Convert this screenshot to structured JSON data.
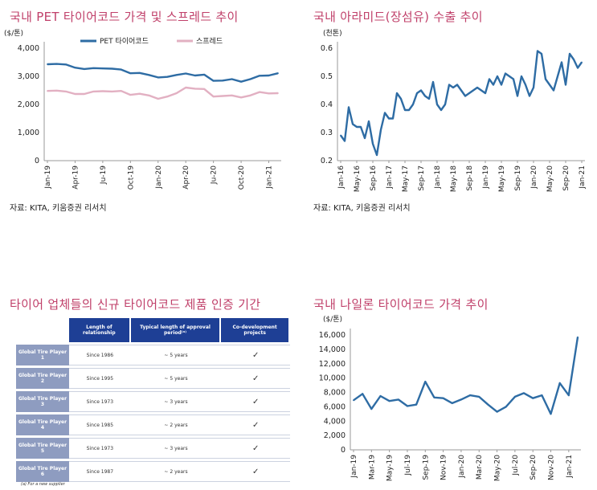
{
  "panels": {
    "pet": {
      "title": "국내 PET 타이어코드 가격 및 스프레드 추이",
      "source": "자료: KITA, 키움증권 리서치"
    },
    "aramid": {
      "title": "국내 아라미드(장섬유) 수출 추이",
      "source": "자료: KITA, 키움증권 리서치"
    },
    "certification": {
      "title": "타이어 업체들의 신규 타이어코드 제품 인증 기간",
      "headers": [
        "",
        "Length of relationship",
        "Typical length of approval period⁽ᵃ⁾",
        "Co-development projects"
      ],
      "rows": [
        {
          "player": "Global Tire Player 1",
          "since": "Since 1986",
          "approval": "~ 5 years",
          "codev": "✓"
        },
        {
          "player": "Global Tire Player 2",
          "since": "Since 1995",
          "approval": "~ 5 years",
          "codev": "✓"
        },
        {
          "player": "Global Tire Player 3",
          "since": "Since 1973",
          "approval": "~ 3 years",
          "codev": "✓"
        },
        {
          "player": "Global Tire Player 4",
          "since": "Since 1985",
          "approval": "~ 2 years",
          "codev": "✓"
        },
        {
          "player": "Global Tire Player 5",
          "since": "Since 1973",
          "approval": "~ 3 years",
          "codev": "✓"
        },
        {
          "player": "Global Tire Player 6",
          "since": "Since 1987",
          "approval": "~ 2 years",
          "codev": "✓"
        }
      ],
      "footnote": "(a)   For a new supplier"
    },
    "nylon": {
      "title": "국내 나일론 타이어코드 가격 추이"
    }
  },
  "chart_data": [
    {
      "type": "line",
      "id": "pet",
      "title": "국내 PET 타이어코드 가격 및 스프레드 추이",
      "ylabel": "($/톤)",
      "ylim": [
        0,
        4000
      ],
      "yticks": [
        0,
        1000,
        2000,
        3000,
        4000
      ],
      "ytick_labels": [
        "0",
        "1,000",
        "2,000",
        "3,000",
        "4,000"
      ],
      "x_tick_labels": [
        "Jan-19",
        "Apr-19",
        "Ju-19",
        "Oct-19",
        "Jan-20",
        "Apr-20",
        "Ju-20",
        "Oct-20",
        "Jan-21"
      ],
      "x_tick_index": [
        0,
        3,
        6,
        9,
        12,
        15,
        18,
        21,
        24
      ],
      "legend_position": "top",
      "series": [
        {
          "name": "PET 타이어코드",
          "color": "#2e6ca4",
          "values": [
            3430,
            3440,
            3420,
            3310,
            3260,
            3290,
            3280,
            3270,
            3240,
            3110,
            3120,
            3050,
            2960,
            2980,
            3050,
            3100,
            3030,
            3060,
            2840,
            2850,
            2900,
            2810,
            2900,
            3020,
            3030,
            3110
          ]
        },
        {
          "name": "스프레드",
          "color": "#e2b0c2",
          "values": [
            2480,
            2490,
            2460,
            2370,
            2370,
            2460,
            2470,
            2460,
            2480,
            2340,
            2380,
            2320,
            2200,
            2280,
            2400,
            2600,
            2560,
            2550,
            2280,
            2300,
            2320,
            2250,
            2320,
            2440,
            2390,
            2400
          ]
        }
      ]
    },
    {
      "type": "line",
      "id": "aramid",
      "title": "국내 아라미드(장섬유) 수출 추이",
      "ylabel": "(천톤)",
      "ylim": [
        0.2,
        0.6
      ],
      "yticks": [
        0.2,
        0.3,
        0.4,
        0.5,
        0.6
      ],
      "ytick_labels": [
        "0.2",
        "0.3",
        "0.4",
        "0.5",
        "0.6"
      ],
      "x_tick_labels": [
        "Jan-16",
        "May-16",
        "Sep-16",
        "Jan-17",
        "May-17",
        "Sep-17",
        "Jan-18",
        "May-18",
        "Sep-18",
        "Jan-19",
        "May-19",
        "Sep-19",
        "Jan-20",
        "May-20",
        "Sep-20",
        "Jan-21"
      ],
      "x_tick_index": [
        0,
        4,
        8,
        12,
        16,
        20,
        24,
        28,
        32,
        36,
        40,
        44,
        48,
        52,
        56,
        60
      ],
      "series": [
        {
          "name": "수출",
          "color": "#2e6ca4",
          "values": [
            0.29,
            0.27,
            0.39,
            0.33,
            0.32,
            0.32,
            0.28,
            0.34,
            0.26,
            0.22,
            0.31,
            0.37,
            0.35,
            0.35,
            0.44,
            0.42,
            0.38,
            0.38,
            0.4,
            0.44,
            0.45,
            0.43,
            0.42,
            0.48,
            0.4,
            0.38,
            0.4,
            0.47,
            0.46,
            0.47,
            0.45,
            0.43,
            0.44,
            0.45,
            0.46,
            0.45,
            0.44,
            0.49,
            0.47,
            0.5,
            0.47,
            0.51,
            0.5,
            0.49,
            0.43,
            0.5,
            0.47,
            0.43,
            0.46,
            0.59,
            0.58,
            0.49,
            0.47,
            0.45,
            0.5,
            0.55,
            0.47,
            0.58,
            0.56,
            0.53,
            0.55
          ]
        }
      ]
    },
    {
      "type": "line",
      "id": "nylon",
      "title": "국내 나일론 타이어코드 가격 추이",
      "ylabel": "($/톤)",
      "ylim": [
        0,
        16000
      ],
      "yticks": [
        0,
        2000,
        4000,
        6000,
        8000,
        10000,
        12000,
        14000,
        16000
      ],
      "ytick_labels": [
        "0",
        "2,000",
        "4,000",
        "6,000",
        "8,000",
        "10,000",
        "12,000",
        "14,000",
        "16,000"
      ],
      "x_tick_labels": [
        "Jan-19",
        "Mar-19",
        "May-19",
        "Jul-19",
        "Sep-19",
        "Nov-19",
        "Jan-20",
        "Mar-20",
        "May-20",
        "Jul-20",
        "Sep-20",
        "Nov-20",
        "Jan-21"
      ],
      "x_tick_index": [
        0,
        2,
        4,
        6,
        8,
        10,
        12,
        14,
        16,
        18,
        20,
        22,
        24
      ],
      "series": [
        {
          "name": "나일론 타이어코드",
          "color": "#2e6ca4",
          "values": [
            6900,
            7800,
            5700,
            7500,
            6800,
            7000,
            6100,
            6300,
            9500,
            7300,
            7200,
            6500,
            7000,
            7600,
            7400,
            6300,
            5300,
            6000,
            7400,
            7900,
            7200,
            7600,
            5000,
            9300,
            7600,
            15700
          ]
        }
      ]
    }
  ]
}
